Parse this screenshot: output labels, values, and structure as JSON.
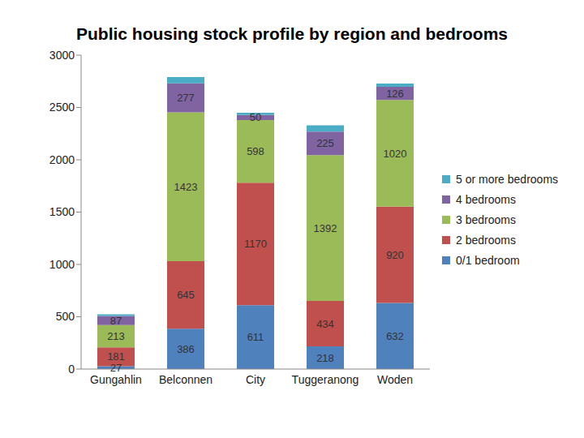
{
  "chart_data": {
    "type": "bar",
    "title": "Public housing stock profile by region and bedrooms",
    "stacked": true,
    "legend": "right",
    "grid": false,
    "categories": [
      "Gungahlin",
      "Belconnen",
      "City",
      "Tuggeranong",
      "Woden"
    ],
    "ylim": [
      0,
      3000
    ],
    "yticks": [
      0,
      500,
      1000,
      1500,
      2000,
      2500,
      3000
    ],
    "series": [
      {
        "name": "0/1 bedroom",
        "color": "#4f81bd",
        "data_labels": true,
        "values": [
          27,
          386,
          611,
          218,
          632
        ]
      },
      {
        "name": "2 bedrooms",
        "color": "#c0504d",
        "data_labels": true,
        "values": [
          181,
          645,
          1170,
          434,
          920
        ]
      },
      {
        "name": "3 bedrooms",
        "color": "#9bbb59",
        "data_labels": true,
        "values": [
          213,
          1423,
          598,
          1392,
          1020
        ]
      },
      {
        "name": "4 bedrooms",
        "color": "#8064a2",
        "data_labels": true,
        "values": [
          87,
          277,
          50,
          225,
          126
        ]
      },
      {
        "name": "5 or more bedrooms",
        "color": "#4bacc6",
        "data_labels": false,
        "values": [
          15,
          60,
          20,
          60,
          30
        ]
      }
    ]
  }
}
